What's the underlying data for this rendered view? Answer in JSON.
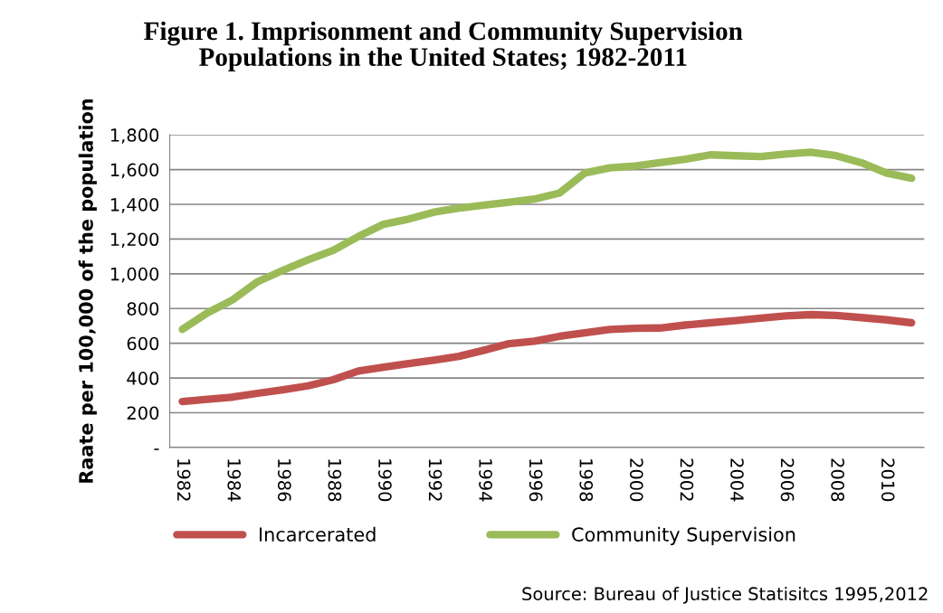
{
  "chart_data": {
    "type": "line",
    "title": "Figure 1. Imprisonment and Community Supervision\nPopulations in the United States; 1982-2011",
    "ylabel": "Raate per 100,000 of the population",
    "categories": [
      "1982",
      null,
      "1984",
      null,
      "1986",
      null,
      "1988",
      null,
      "1990",
      null,
      "1992",
      null,
      "1994",
      null,
      "1996",
      null,
      "1998",
      null,
      "2000",
      null,
      "2002",
      null,
      "2004",
      null,
      "2006",
      null,
      "2008",
      null,
      "2010",
      null
    ],
    "series": [
      {
        "name": "Incarcerated",
        "color": "#c0504d",
        "values": [
          265,
          278,
          290,
          312,
          332,
          355,
          390,
          440,
          462,
          483,
          503,
          525,
          560,
          598,
          612,
          640,
          660,
          680,
          686,
          688,
          705,
          718,
          730,
          745,
          758,
          765,
          760,
          748,
          735,
          718
        ]
      },
      {
        "name": "Community Supervision",
        "color": "#9bbb59",
        "values": [
          680,
          775,
          850,
          955,
          1020,
          1080,
          1135,
          1215,
          1285,
          1315,
          1355,
          1378,
          1395,
          1412,
          1430,
          1465,
          1580,
          1610,
          1620,
          1640,
          1660,
          1685,
          1680,
          1675,
          1690,
          1700,
          1680,
          1640,
          1580,
          1550
        ]
      }
    ],
    "ylim": [
      0,
      1800
    ],
    "yticks": [
      {
        "value": 0,
        "label": "-"
      },
      200,
      400,
      600,
      800,
      {
        "value": 1000,
        "label": "1,000"
      },
      {
        "value": 1200,
        "label": "1,200"
      },
      {
        "value": 1400,
        "label": "1,400"
      },
      {
        "value": 1600,
        "label": "1,600"
      },
      {
        "value": 1800,
        "label": "1,800"
      }
    ],
    "grid": "y",
    "legend": "bottom",
    "marker": "none",
    "line_style": "solid",
    "annotations": [
      "Source: Bureau of Justice Statisitcs 1995,2012"
    ]
  }
}
